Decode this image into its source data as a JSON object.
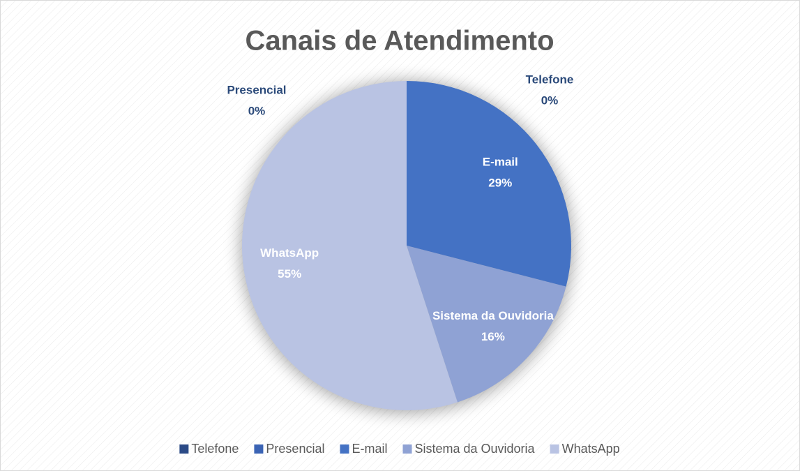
{
  "chart_data": {
    "type": "pie",
    "title": "Canais de Atendimento",
    "categories": [
      "Telefone",
      "Presencial",
      "E-mail",
      "Sistema da Ouvidoria",
      "WhatsApp"
    ],
    "values": [
      0,
      0,
      29,
      16,
      55
    ],
    "value_labels": [
      "0%",
      "0%",
      "29%",
      "16%",
      "55%"
    ],
    "colors": [
      "#2b4a86",
      "#3a63b4",
      "#4472c4",
      "#8fa2d4",
      "#b9c3e3"
    ],
    "legend": "bottom"
  }
}
